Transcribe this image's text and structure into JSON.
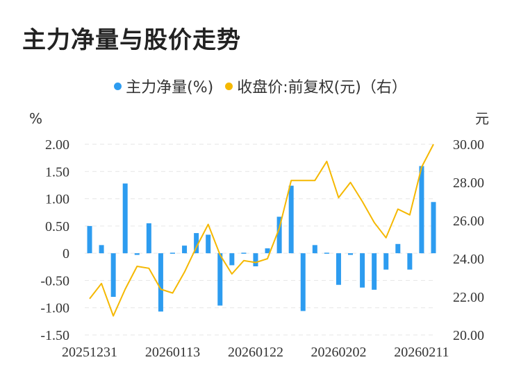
{
  "title": "主力净量与股价走势",
  "legend": [
    {
      "label": "主力净量(%)",
      "color": "#2d9cf0"
    },
    {
      "label": "收盘价:前复权(元)（右）",
      "color": "#f5b800"
    }
  ],
  "chart_data": {
    "type": "bar",
    "title": "主力净量与股价走势",
    "left_unit": "%",
    "right_unit": "元",
    "left_ylim": [
      -1.5,
      2.0
    ],
    "right_ylim": [
      20.0,
      30.0
    ],
    "left_ticks": [
      "2.00",
      "1.50",
      "1.00",
      "0.50",
      "0",
      "-0.50",
      "-1.00",
      "-1.50"
    ],
    "right_ticks": [
      "30.00",
      "28.00",
      "26.00",
      "24.00",
      "22.00",
      "20.00"
    ],
    "x_tick_labels": [
      "20251231",
      "20260113",
      "20260122",
      "20260202",
      "20260211"
    ],
    "grid": true,
    "series": [
      {
        "name": "主力净量(%)",
        "type": "bar",
        "axis": "left",
        "color": "#2d9cf0",
        "values": [
          0.5,
          0.15,
          -0.8,
          1.28,
          -0.03,
          0.55,
          -1.07,
          0.01,
          0.14,
          0.37,
          0.34,
          -0.96,
          -0.22,
          0.01,
          -0.24,
          0.09,
          0.67,
          1.24,
          -1.06,
          0.15,
          0.01,
          -0.58,
          -0.03,
          -0.63,
          -0.67,
          -0.3,
          0.17,
          -0.3,
          1.6,
          0.94
        ]
      },
      {
        "name": "收盘价:前复权(元)（右）",
        "type": "line",
        "axis": "right",
        "color": "#f5b800",
        "values": [
          21.9,
          22.7,
          21.0,
          22.4,
          23.6,
          23.5,
          22.4,
          22.2,
          23.3,
          24.6,
          25.8,
          24.2,
          23.2,
          23.9,
          23.8,
          24.0,
          25.6,
          28.1,
          28.1,
          28.1,
          29.1,
          27.2,
          28.0,
          27.0,
          25.9,
          25.1,
          26.6,
          26.3,
          28.8,
          30.0
        ]
      }
    ]
  }
}
